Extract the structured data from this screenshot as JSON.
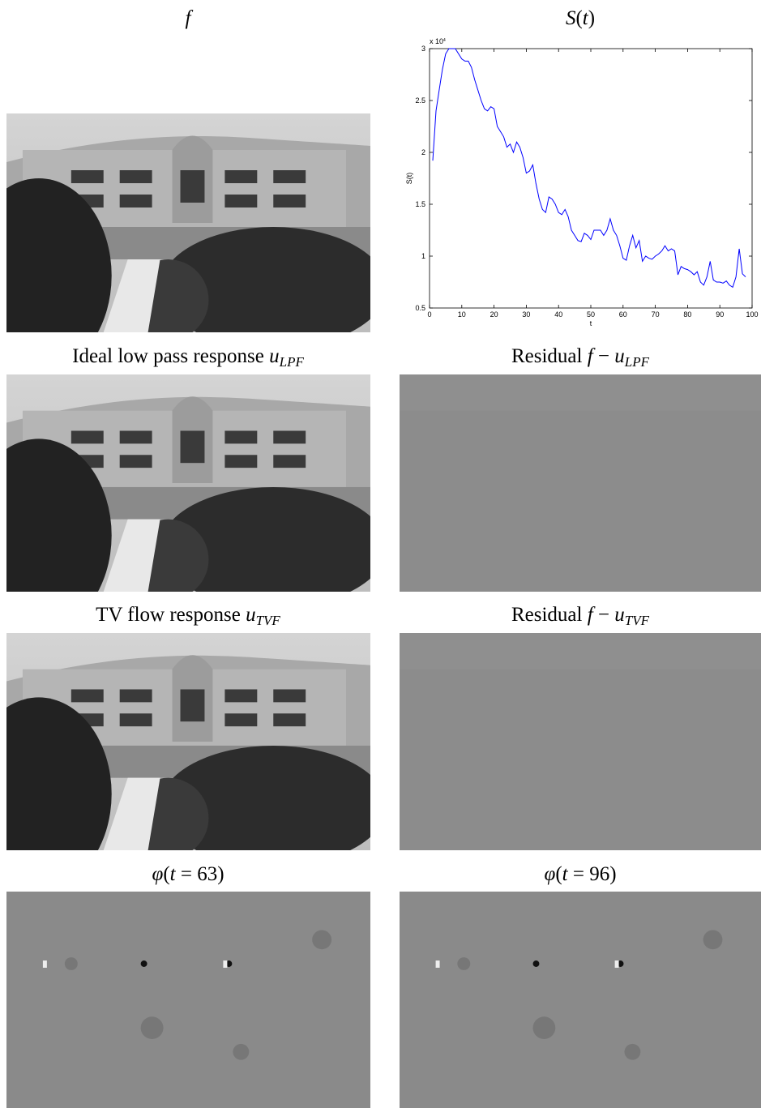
{
  "panels": [
    {
      "title": [
        {
          "text": "f",
          "kind": "math"
        }
      ]
    },
    {
      "title": [
        {
          "text": "S",
          "kind": "math"
        },
        {
          "text": "(",
          "kind": "roman"
        },
        {
          "text": "t",
          "kind": "math"
        },
        {
          "text": ")",
          "kind": "roman"
        }
      ]
    },
    {
      "title": [
        {
          "text": "Ideal low pass response ",
          "kind": "roman"
        },
        {
          "text": "u",
          "kind": "math"
        },
        {
          "text": "LPF",
          "kind": "sub"
        }
      ]
    },
    {
      "title": [
        {
          "text": "Residual ",
          "kind": "roman"
        },
        {
          "text": "f",
          "kind": "math"
        },
        {
          "text": " − ",
          "kind": "roman"
        },
        {
          "text": "u",
          "kind": "math"
        },
        {
          "text": "LPF",
          "kind": "sub"
        }
      ]
    },
    {
      "title": [
        {
          "text": "TV flow response ",
          "kind": "roman"
        },
        {
          "text": "u",
          "kind": "math"
        },
        {
          "text": "TVF",
          "kind": "sub"
        }
      ]
    },
    {
      "title": [
        {
          "text": "Residual ",
          "kind": "roman"
        },
        {
          "text": "f",
          "kind": "math"
        },
        {
          "text": " − ",
          "kind": "roman"
        },
        {
          "text": "u",
          "kind": "math"
        },
        {
          "text": "TVF",
          "kind": "sub"
        }
      ]
    },
    {
      "title": [
        {
          "text": "φ",
          "kind": "math"
        },
        {
          "text": "(",
          "kind": "roman"
        },
        {
          "text": "t",
          "kind": "math"
        },
        {
          "text": " = 63)",
          "kind": "roman"
        }
      ]
    },
    {
      "title": [
        {
          "text": "φ",
          "kind": "math"
        },
        {
          "text": "(",
          "kind": "roman"
        },
        {
          "text": "t",
          "kind": "math"
        },
        {
          "text": " = 96)",
          "kind": "roman"
        }
      ]
    }
  ],
  "chart_data": {
    "type": "line",
    "xlabel": "t",
    "ylabel": "S(t)",
    "y_multiplier": {
      "base": "x 10",
      "exponent": "4"
    },
    "color": "#0000ff",
    "x": [
      1,
      2,
      3,
      4,
      5,
      6,
      7,
      8,
      9,
      10,
      11,
      12,
      13,
      14,
      15,
      16,
      17,
      18,
      19,
      20,
      21,
      22,
      23,
      24,
      25,
      26,
      27,
      28,
      29,
      30,
      31,
      32,
      33,
      34,
      35,
      36,
      37,
      38,
      39,
      40,
      41,
      42,
      43,
      44,
      45,
      46,
      47,
      48,
      49,
      50,
      51,
      52,
      53,
      54,
      55,
      56,
      57,
      58,
      59,
      60,
      61,
      62,
      63,
      64,
      65,
      66,
      67,
      68,
      69,
      70,
      71,
      72,
      73,
      74,
      75,
      76,
      77,
      78,
      79,
      80,
      81,
      82,
      83,
      84,
      85,
      86,
      87,
      88,
      89,
      90,
      91,
      92,
      93,
      94,
      95,
      96,
      97,
      98
    ],
    "values": [
      1.92,
      2.4,
      2.6,
      2.8,
      2.95,
      3.0,
      3.0,
      3.0,
      2.95,
      2.9,
      2.88,
      2.88,
      2.82,
      2.7,
      2.6,
      2.5,
      2.42,
      2.4,
      2.44,
      2.42,
      2.25,
      2.2,
      2.15,
      2.05,
      2.08,
      2.0,
      2.1,
      2.05,
      1.95,
      1.8,
      1.82,
      1.88,
      1.7,
      1.55,
      1.45,
      1.42,
      1.57,
      1.55,
      1.5,
      1.42,
      1.4,
      1.45,
      1.38,
      1.25,
      1.2,
      1.15,
      1.14,
      1.22,
      1.2,
      1.16,
      1.25,
      1.25,
      1.25,
      1.2,
      1.25,
      1.36,
      1.25,
      1.2,
      1.1,
      0.98,
      0.96,
      1.1,
      1.2,
      1.08,
      1.15,
      0.95,
      1.0,
      0.98,
      0.97,
      1.0,
      1.02,
      1.05,
      1.1,
      1.05,
      1.07,
      1.05,
      0.82,
      0.9,
      0.88,
      0.87,
      0.85,
      0.82,
      0.85,
      0.75,
      0.72,
      0.8,
      0.95,
      0.77,
      0.75,
      0.75,
      0.74,
      0.76,
      0.72,
      0.7,
      0.8,
      1.07,
      0.83,
      0.8
    ],
    "xlim": [
      0,
      100
    ],
    "xticks": [
      0,
      10,
      20,
      30,
      40,
      50,
      60,
      70,
      80,
      90,
      100
    ],
    "ylim": [
      0.5,
      3
    ],
    "yticks": [
      0.5,
      1,
      1.5,
      2,
      2.5,
      3
    ]
  }
}
